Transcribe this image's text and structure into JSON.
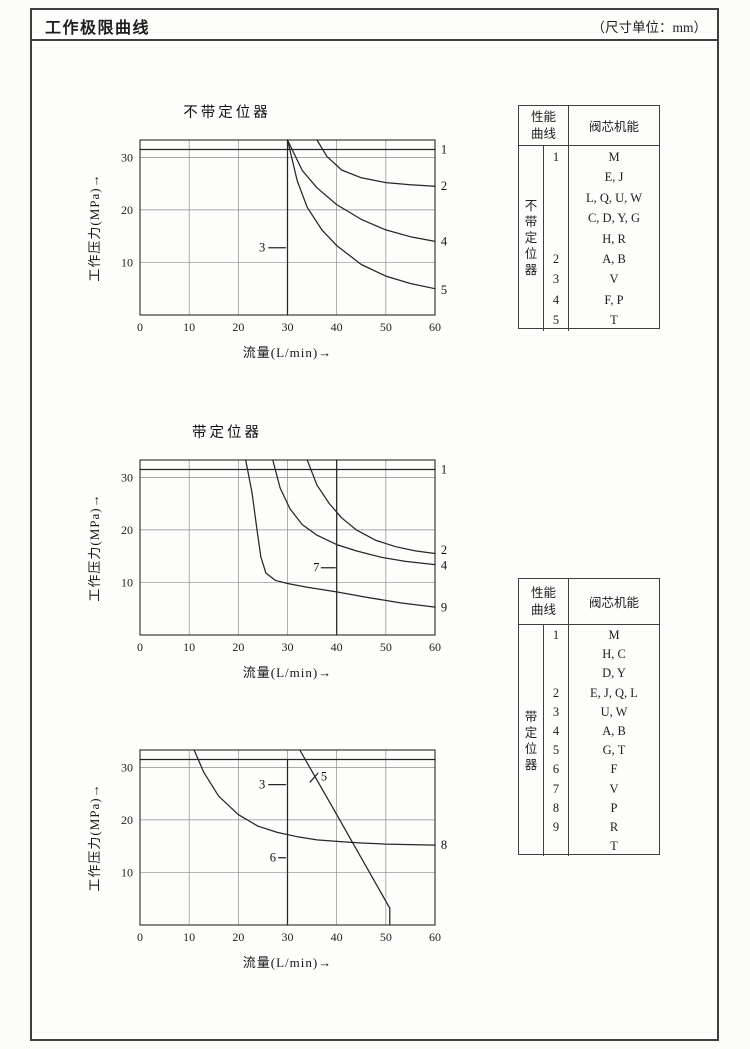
{
  "page": {
    "title": "工作极限曲线",
    "unit_note": "（尺寸单位：mm）"
  },
  "chart_data": [
    {
      "type": "line",
      "title": "不带定位器",
      "xlabel": "流量(L/min)→",
      "ylabel": "工作压力(MPa)→",
      "xlim": [
        0,
        60
      ],
      "ylim": [
        0,
        33.3
      ],
      "xticks": [
        0,
        10,
        20,
        30,
        40,
        50,
        60
      ],
      "yticks": [
        10,
        20,
        30
      ],
      "grid": true,
      "series": [
        {
          "name": "1",
          "points": [
            [
              0,
              31.5
            ],
            [
              60,
              31.5
            ]
          ]
        },
        {
          "name": "2",
          "points": [
            [
              36,
              33.3
            ],
            [
              38,
              30.2
            ],
            [
              41,
              27.6
            ],
            [
              45,
              26.1
            ],
            [
              50,
              25.2
            ],
            [
              55,
              24.8
            ],
            [
              60,
              24.5
            ]
          ]
        },
        {
          "name": "3",
          "points": [
            [
              30,
              33.3
            ],
            [
              30,
              0
            ]
          ]
        },
        {
          "name": "4",
          "points": [
            [
              30,
              33.3
            ],
            [
              33,
              27.5
            ],
            [
              36,
              24.2
            ],
            [
              40,
              21
            ],
            [
              45,
              18.2
            ],
            [
              50,
              16.2
            ],
            [
              55,
              14.9
            ],
            [
              60,
              14
            ]
          ]
        },
        {
          "name": "5",
          "points": [
            [
              30,
              33.3
            ],
            [
              32,
              25.5
            ],
            [
              34,
              20.5
            ],
            [
              37,
              16.2
            ],
            [
              40,
              13.2
            ],
            [
              45,
              9.6
            ],
            [
              50,
              7.4
            ],
            [
              55,
              6
            ],
            [
              60,
              5
            ]
          ]
        }
      ],
      "labels": [
        {
          "text": "1",
          "x": 61.2,
          "y": 31.5
        },
        {
          "text": "2",
          "x": 61.2,
          "y": 24.5
        },
        {
          "text": "3",
          "x": 24.2,
          "y": 12.8,
          "line": [
            26.2,
            12.8,
            29.6,
            12.8
          ]
        },
        {
          "text": "4",
          "x": 61.2,
          "y": 14
        },
        {
          "text": "5",
          "x": 61.2,
          "y": 4.8
        }
      ]
    },
    {
      "type": "line",
      "title": "带定位器",
      "xlabel": "流量(L/min)→",
      "ylabel": "工作压力(MPa)→",
      "xlim": [
        0,
        60
      ],
      "ylim": [
        0,
        33.3
      ],
      "xticks": [
        0,
        10,
        20,
        30,
        40,
        50,
        60
      ],
      "yticks": [
        10,
        20,
        30
      ],
      "grid": true,
      "series": [
        {
          "name": "1",
          "points": [
            [
              0,
              31.5
            ],
            [
              60,
              31.5
            ]
          ]
        },
        {
          "name": "2",
          "points": [
            [
              34,
              33.3
            ],
            [
              36,
              28.5
            ],
            [
              38.5,
              25
            ],
            [
              41,
              22.3
            ],
            [
              44,
              20
            ],
            [
              48,
              18
            ],
            [
              52,
              16.8
            ],
            [
              56,
              16
            ],
            [
              60,
              15.5
            ]
          ]
        },
        {
          "name": "4",
          "points": [
            [
              27,
              33.3
            ],
            [
              28.5,
              28
            ],
            [
              30.5,
              24
            ],
            [
              33,
              21
            ],
            [
              36,
              19
            ],
            [
              40,
              17.2
            ],
            [
              44,
              16
            ],
            [
              49,
              14.8
            ],
            [
              54,
              14
            ],
            [
              60,
              13.4
            ]
          ]
        },
        {
          "name": "7",
          "points": [
            [
              40,
              33.3
            ],
            [
              40,
              0
            ]
          ]
        },
        {
          "name": "9",
          "points": [
            [
              21.5,
              33.3
            ],
            [
              22.8,
              27
            ],
            [
              23.8,
              20
            ],
            [
              24.6,
              14.8
            ],
            [
              25.6,
              11.8
            ],
            [
              27.5,
              10.4
            ],
            [
              30,
              9.8
            ],
            [
              34,
              9.1
            ],
            [
              40,
              8.2
            ],
            [
              46,
              7.2
            ],
            [
              53,
              6.1
            ],
            [
              60,
              5.3
            ]
          ]
        }
      ],
      "labels": [
        {
          "text": "1",
          "x": 61.2,
          "y": 31.5
        },
        {
          "text": "2",
          "x": 61.2,
          "y": 16.2
        },
        {
          "text": "4",
          "x": 61.2,
          "y": 13.2
        },
        {
          "text": "7",
          "x": 35.2,
          "y": 12.8,
          "line": [
            36.9,
            12.8,
            39.7,
            12.8
          ]
        },
        {
          "text": "9",
          "x": 61.2,
          "y": 5.2
        }
      ]
    },
    {
      "type": "line",
      "title": "",
      "xlabel": "流量(L/min)→",
      "ylabel": "工作压力(MPa)→",
      "xlim": [
        0,
        60
      ],
      "ylim": [
        0,
        33.3
      ],
      "xticks": [
        0,
        10,
        20,
        30,
        40,
        50,
        60
      ],
      "yticks": [
        10,
        20,
        30
      ],
      "grid": true,
      "series": [
        {
          "name": "",
          "points": [
            [
              0,
              31.5
            ],
            [
              60,
              31.5
            ]
          ]
        },
        {
          "name": "3",
          "points": [
            [
              30,
              31.5
            ],
            [
              30,
              17.2
            ]
          ]
        },
        {
          "name": "5",
          "points": [
            [
              32.5,
              33.3
            ],
            [
              40,
              21
            ],
            [
              50.8,
              3.2
            ],
            [
              50.8,
              0
            ]
          ]
        },
        {
          "name": "6",
          "points": [
            [
              30,
              17.2
            ],
            [
              30,
              0
            ]
          ]
        },
        {
          "name": "8",
          "points": [
            [
              11,
              33.3
            ],
            [
              13,
              29
            ],
            [
              16,
              24.5
            ],
            [
              20,
              21
            ],
            [
              24,
              18.8
            ],
            [
              28,
              17.6
            ],
            [
              32,
              16.8
            ],
            [
              36,
              16.2
            ],
            [
              40,
              15.9
            ],
            [
              45,
              15.6
            ],
            [
              50,
              15.4
            ],
            [
              60,
              15.2
            ]
          ]
        }
      ],
      "labels": [
        {
          "text": "3",
          "x": 24.2,
          "y": 26.7,
          "line": [
            26.2,
            26.7,
            29.6,
            26.7
          ]
        },
        {
          "text": "5",
          "x": 36.8,
          "y": 28.3,
          "line": [
            34.6,
            27.2,
            36.2,
            28.9
          ]
        },
        {
          "text": "6",
          "x": 26.4,
          "y": 12.8,
          "line": [
            28.2,
            12.8,
            29.6,
            12.8
          ]
        },
        {
          "text": "8",
          "x": 61.2,
          "y": 15.2
        }
      ]
    }
  ],
  "tables": [
    {
      "header_left": "性能曲线",
      "header_right": "阀芯机能",
      "group": "不带定位器",
      "rows": [
        {
          "no": "1",
          "spools": "M"
        },
        {
          "no": "",
          "spools": "E, J"
        },
        {
          "no": "",
          "spools": "L, Q, U, W"
        },
        {
          "no": "",
          "spools": "C, D, Y, G"
        },
        {
          "no": "",
          "spools": "H, R"
        },
        {
          "no": "2",
          "spools": "A, B"
        },
        {
          "no": "3",
          "spools": "V"
        },
        {
          "no": "4",
          "spools": "F, P"
        },
        {
          "no": "5",
          "spools": "T"
        }
      ]
    },
    {
      "header_left": "性能曲线",
      "header_right": "阀芯机能",
      "group": "带定位器",
      "rows": [
        {
          "no": "1",
          "spools": "M"
        },
        {
          "no": "",
          "spools": "H, C"
        },
        {
          "no": "",
          "spools": "D, Y"
        },
        {
          "no": "2",
          "spools": "E, J, Q, L"
        },
        {
          "no": "3",
          "spools": "U, W"
        },
        {
          "no": "4",
          "spools": "A, B"
        },
        {
          "no": "5",
          "spools": "G, T"
        },
        {
          "no": "6",
          "spools": "F"
        },
        {
          "no": "7",
          "spools": "V"
        },
        {
          "no": "8",
          "spools": "P"
        },
        {
          "no": "9",
          "spools": "R"
        },
        {
          "no": "",
          "spools": "T"
        }
      ]
    }
  ]
}
